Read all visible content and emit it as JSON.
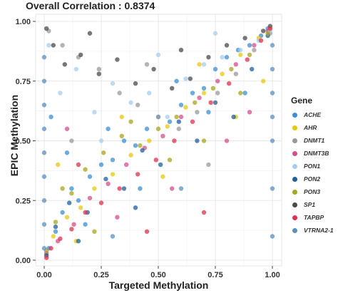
{
  "chart_data": {
    "type": "scatter",
    "title": "Overall Correlation : 0.8374",
    "xlabel": "Targeted Methylation",
    "ylabel": "EPIC Methylation",
    "xlim": [
      0,
      1
    ],
    "ylim": [
      0,
      1
    ],
    "x_ticks": [
      "0.00",
      "0.25",
      "0.50",
      "0.75",
      "1.00"
    ],
    "y_ticks": [
      "0.00",
      "0.25",
      "0.50",
      "0.75",
      "1.00"
    ],
    "grid": true,
    "legend_title": "Gene",
    "legend_position": "right",
    "series": [
      {
        "name": "ACHE",
        "color": "#3a8fd6",
        "x": [
          0.02,
          0.05,
          0.08,
          0.12,
          0.15,
          0.2,
          0.25,
          0.3,
          0.35,
          0.4,
          0.45,
          0.5,
          0.55,
          0.6,
          0.65,
          0.7,
          0.75,
          0.8,
          0.85,
          0.9,
          0.95,
          0.98,
          0.03,
          0.1,
          0.18,
          0.28,
          0.42,
          0.58,
          0.72,
          0.88
        ],
        "y": [
          0.05,
          0.12,
          0.2,
          0.3,
          0.25,
          0.35,
          0.4,
          0.42,
          0.5,
          0.48,
          0.55,
          0.6,
          0.58,
          0.65,
          0.7,
          0.72,
          0.8,
          0.85,
          0.88,
          0.9,
          0.94,
          0.97,
          0.6,
          0.45,
          0.15,
          0.55,
          0.3,
          0.75,
          0.62,
          0.7
        ]
      },
      {
        "name": "AHR",
        "color": "#e6c812",
        "x": [
          0.01,
          0.04,
          0.1,
          0.16,
          0.22,
          0.3,
          0.38,
          0.46,
          0.54,
          0.62,
          0.7,
          0.78,
          0.86,
          0.94,
          0.99,
          0.06,
          0.14,
          0.34,
          0.52,
          0.68,
          0.84,
          0.96
        ],
        "y": [
          0.02,
          0.1,
          0.18,
          0.22,
          0.3,
          0.36,
          0.44,
          0.5,
          0.56,
          0.64,
          0.7,
          0.78,
          0.86,
          0.93,
          0.97,
          0.4,
          0.08,
          0.6,
          0.35,
          0.82,
          0.6,
          0.75
        ]
      },
      {
        "name": "DNMT1",
        "color": "#9a9a9a",
        "x": [
          0.02,
          0.08,
          0.15,
          0.24,
          0.33,
          0.41,
          0.5,
          0.59,
          0.67,
          0.76,
          0.84,
          0.92,
          0.99,
          0.12,
          0.45,
          0.72
        ],
        "y": [
          0.96,
          0.9,
          0.85,
          0.8,
          0.7,
          0.65,
          0.6,
          0.55,
          0.62,
          0.7,
          0.78,
          0.88,
          0.95,
          0.5,
          0.82,
          0.4
        ]
      },
      {
        "name": "DNMT3B",
        "color": "#d64e8c",
        "x": [
          0.01,
          0.06,
          0.13,
          0.2,
          0.28,
          0.36,
          0.44,
          0.52,
          0.6,
          0.68,
          0.76,
          0.84,
          0.92,
          0.98,
          0.1,
          0.32,
          0.56,
          0.8,
          0.9
        ],
        "y": [
          0.03,
          0.08,
          0.15,
          0.26,
          0.32,
          0.4,
          0.47,
          0.52,
          0.6,
          0.68,
          0.75,
          0.82,
          0.9,
          0.96,
          0.55,
          0.18,
          0.3,
          0.5,
          0.62
        ]
      },
      {
        "name": "PON1",
        "color": "#a6cdec",
        "x": [
          0.02,
          0.07,
          0.14,
          0.22,
          0.3,
          0.38,
          0.46,
          0.54,
          0.62,
          0.7,
          0.78,
          0.86,
          0.94,
          0.99,
          0.25,
          0.5,
          0.75
        ],
        "y": [
          0.9,
          0.7,
          0.8,
          0.62,
          0.74,
          0.66,
          0.7,
          0.6,
          0.76,
          0.82,
          0.85,
          0.88,
          0.92,
          0.96,
          0.5,
          0.86,
          0.95
        ]
      },
      {
        "name": "PON2",
        "color": "#1e5f9c",
        "x": [
          0.01,
          0.05,
          0.11,
          0.19,
          0.27,
          0.35,
          0.43,
          0.51,
          0.59,
          0.67,
          0.75,
          0.83,
          0.91,
          0.98,
          0.15,
          0.4
        ],
        "y": [
          0.02,
          0.14,
          0.24,
          0.2,
          0.34,
          0.3,
          0.46,
          0.4,
          0.58,
          0.5,
          0.66,
          0.6,
          0.8,
          0.94,
          0.08,
          0.22
        ]
      },
      {
        "name": "PON3",
        "color": "#a8a51f",
        "x": [
          0.01,
          0.05,
          0.12,
          0.18,
          0.26,
          0.34,
          0.42,
          0.5,
          0.58,
          0.66,
          0.74,
          0.82,
          0.9,
          0.98,
          0.08,
          0.22,
          0.38,
          0.55,
          0.7,
          0.86
        ],
        "y": [
          0.04,
          0.16,
          0.28,
          0.38,
          0.45,
          0.52,
          0.48,
          0.55,
          0.6,
          0.66,
          0.72,
          0.8,
          0.86,
          0.95,
          0.3,
          0.12,
          0.58,
          0.42,
          0.5,
          0.7
        ]
      },
      {
        "name": "SP1",
        "color": "#4a4a4a",
        "x": [
          0.01,
          0.04,
          0.09,
          0.16,
          0.24,
          0.32,
          0.4,
          0.48,
          0.56,
          0.64,
          0.72,
          0.8,
          0.88,
          0.96,
          0.99,
          0.2,
          0.6
        ],
        "y": [
          0.97,
          0.9,
          0.82,
          0.86,
          0.78,
          0.84,
          0.74,
          0.8,
          0.72,
          0.76,
          0.85,
          0.9,
          0.93,
          0.96,
          0.98,
          0.95,
          0.88
        ]
      },
      {
        "name": "TAPBP",
        "color": "#e0304e",
        "x": [
          0.01,
          0.03,
          0.07,
          0.12,
          0.18,
          0.25,
          0.33,
          0.41,
          0.49,
          0.57,
          0.65,
          0.73,
          0.81,
          0.89,
          0.95,
          0.99,
          0.15,
          0.45,
          0.7
        ],
        "y": [
          0.01,
          0.05,
          0.09,
          0.13,
          0.2,
          0.24,
          0.3,
          0.36,
          0.42,
          0.5,
          0.58,
          0.66,
          0.74,
          0.84,
          0.92,
          0.97,
          0.4,
          0.12,
          0.2
        ]
      },
      {
        "name": "VTRNA2-1",
        "color": "#5b8fc0",
        "x": [
          0.0,
          0.0,
          0.0,
          0.0,
          0.0,
          0.0,
          0.0,
          0.0,
          0.0,
          1.0,
          1.0,
          1.0,
          1.0,
          1.0,
          1.0,
          1.0,
          0.3,
          0.6
        ],
        "y": [
          0.05,
          0.15,
          0.25,
          0.35,
          0.45,
          0.55,
          0.65,
          0.75,
          0.85,
          0.1,
          0.3,
          0.5,
          0.6,
          0.7,
          0.8,
          0.9,
          0.1,
          0.3
        ]
      }
    ]
  }
}
